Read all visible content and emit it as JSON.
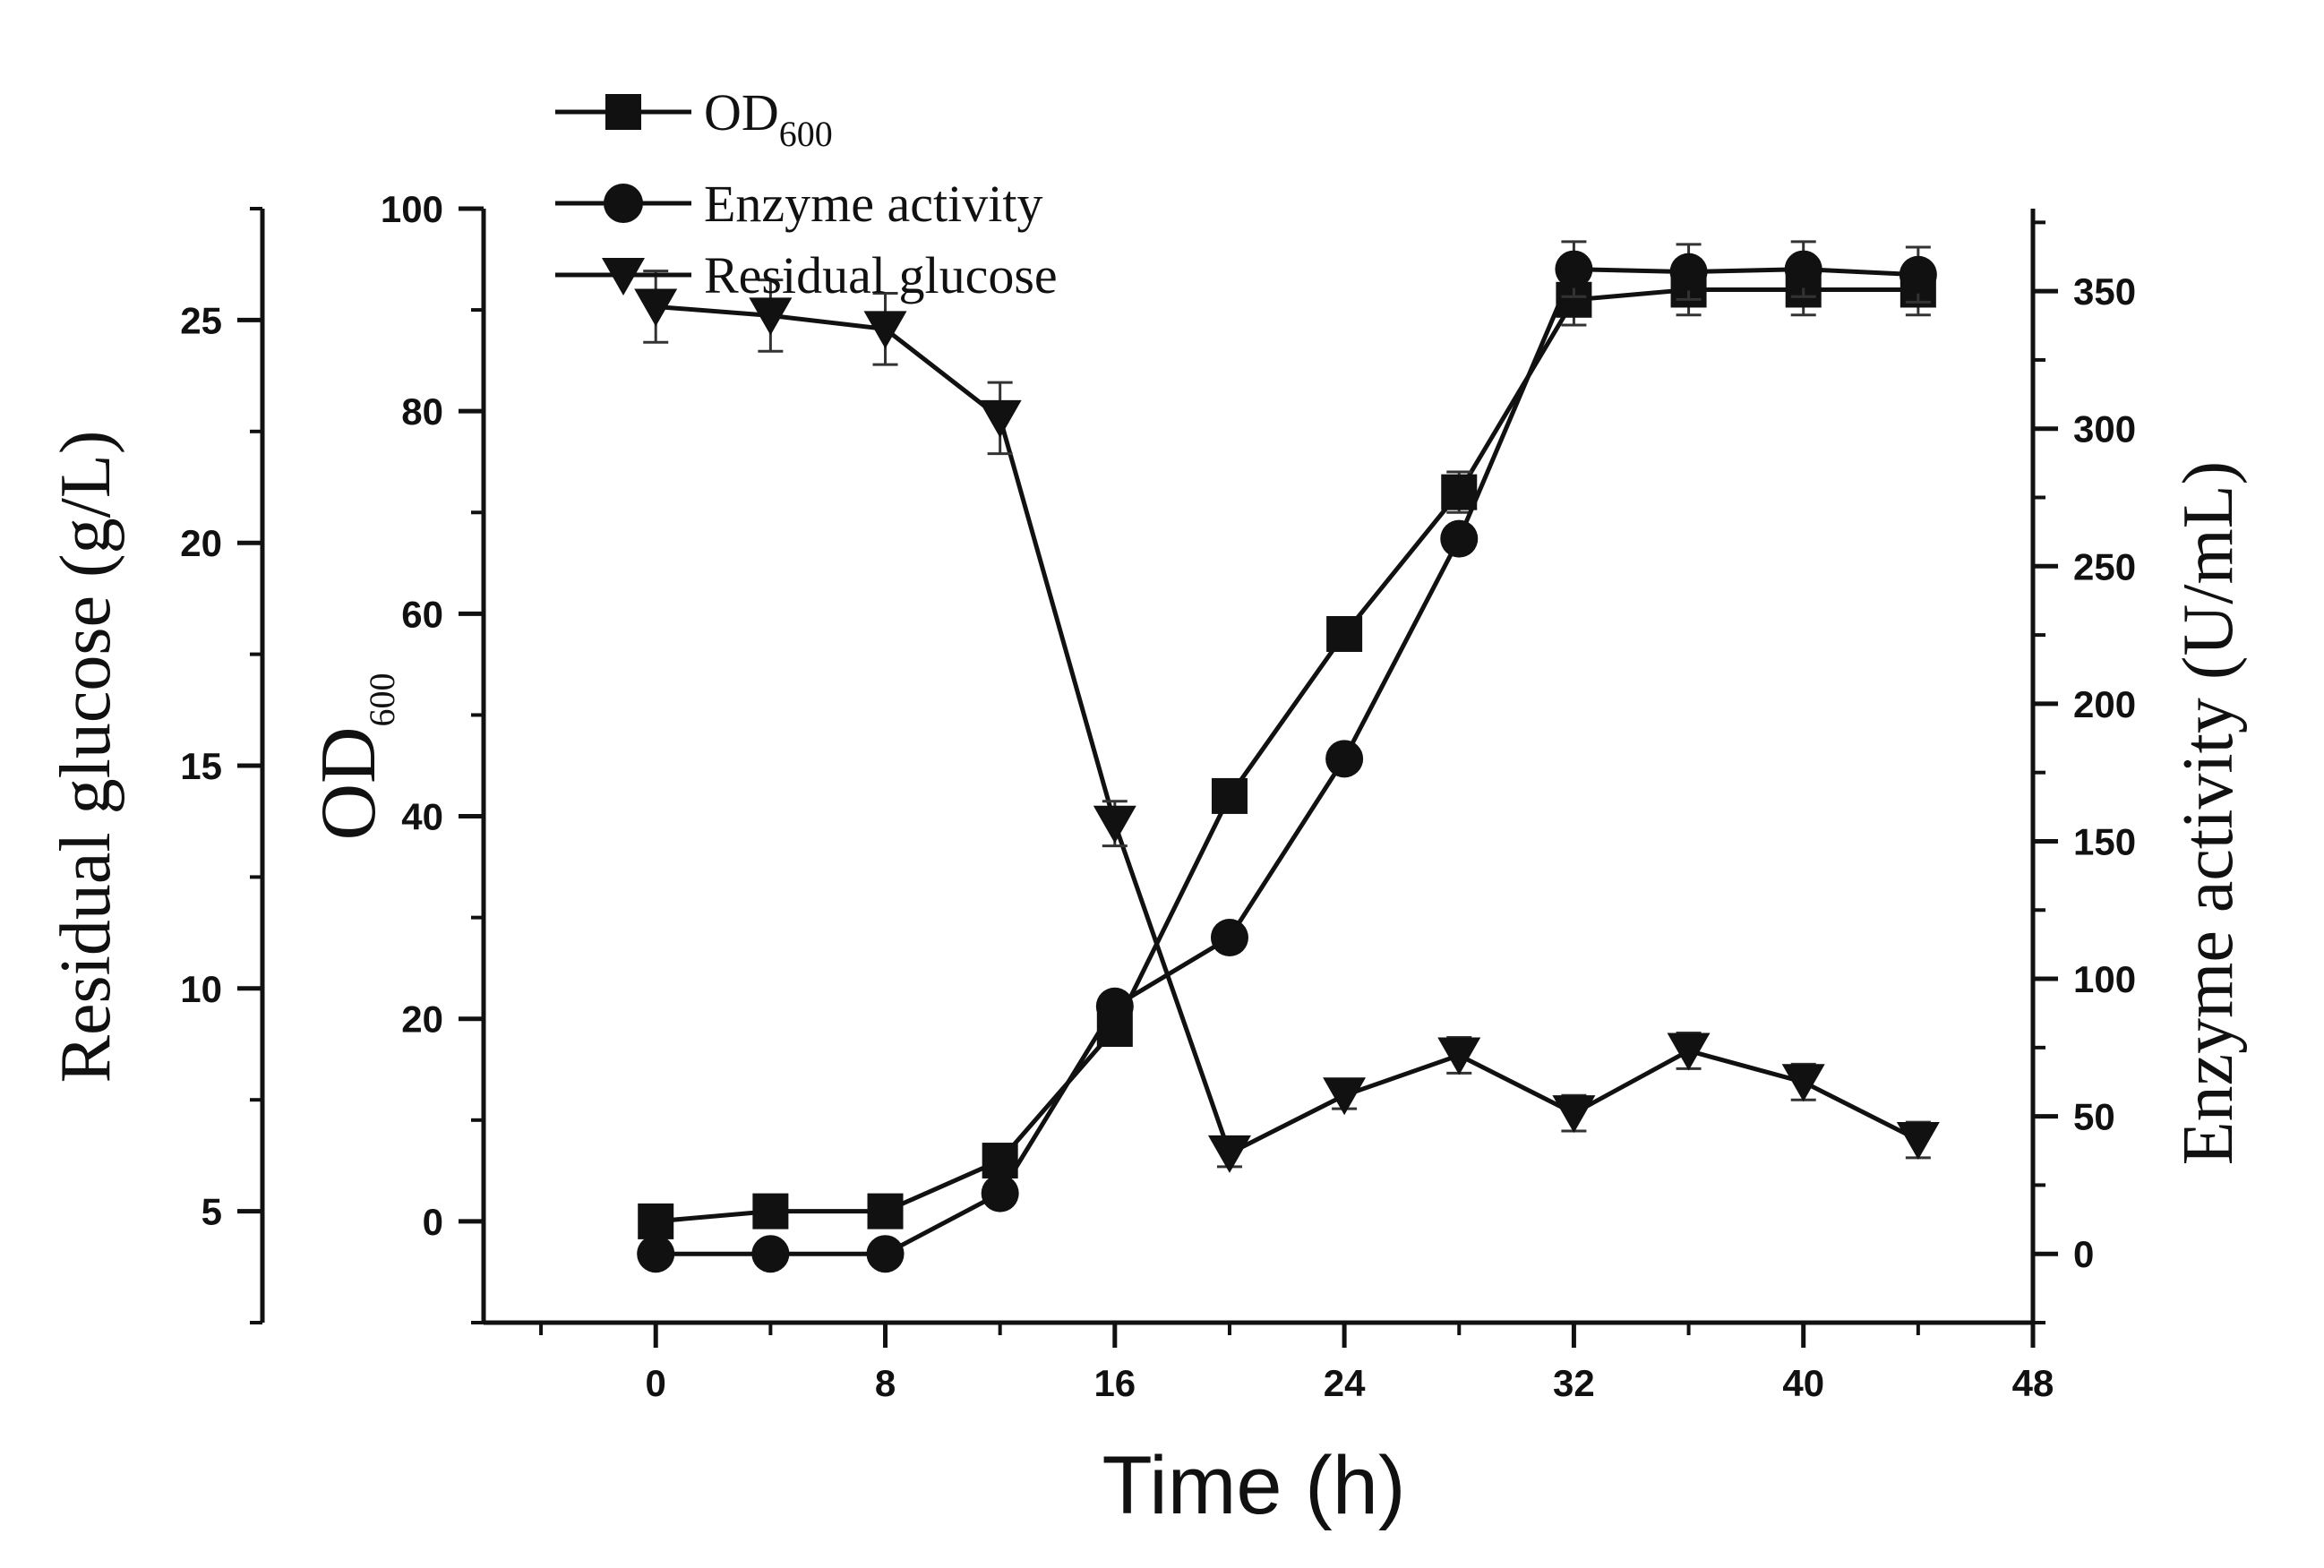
{
  "chart_data": {
    "type": "line",
    "x": [
      0,
      4,
      8,
      12,
      16,
      20,
      24,
      28,
      32,
      36,
      40,
      44
    ],
    "x_axis": {
      "label": "Time (h)",
      "lim": [
        -6,
        48
      ],
      "ticks": [
        0,
        8,
        16,
        24,
        32,
        40,
        48
      ],
      "tick_labels": [
        "0",
        "8",
        "16",
        "24",
        "32",
        "40",
        "48"
      ],
      "minor_step": 4
    },
    "axes": {
      "od": {
        "label_main": "OD",
        "label_sub": "600",
        "lim": [
          -10,
          100
        ],
        "ticks": [
          0,
          20,
          40,
          60,
          80,
          100
        ],
        "tick_labels": [
          "0",
          "20",
          "40",
          "60",
          "80",
          "100"
        ],
        "minor_step": 10
      },
      "glucose": {
        "label": "Residual glucose (g/L)",
        "lim": [
          2.5,
          27.5
        ],
        "ticks": [
          5,
          10,
          15,
          20,
          25
        ],
        "tick_labels": [
          "5",
          "10",
          "15",
          "20",
          "25"
        ],
        "minor_step": 2.5
      },
      "enzyme": {
        "label": "Enzyme activity (U/mL)",
        "lim": [
          -25,
          380
        ],
        "ticks": [
          0,
          50,
          100,
          150,
          200,
          250,
          300,
          350
        ],
        "tick_labels": [
          "0",
          "50",
          "100",
          "150",
          "200",
          "250",
          "300",
          "350"
        ],
        "minor_step": 25
      }
    },
    "series": [
      {
        "name": "OD600",
        "legend_main": "OD",
        "legend_sub": "600",
        "axis": "od",
        "marker": "square",
        "values": [
          0,
          1,
          1,
          6,
          19,
          42,
          58,
          72,
          91,
          92,
          92,
          92
        ],
        "errors": [
          0,
          0,
          0,
          1.5,
          0,
          0,
          0,
          2,
          2.5,
          2.5,
          2.5,
          2.5
        ]
      },
      {
        "name": "Enzyme activity",
        "axis": "enzyme",
        "marker": "circle",
        "values": [
          0,
          0,
          0,
          22,
          90,
          115,
          180,
          260,
          358,
          357,
          358,
          356
        ],
        "errors": [
          0,
          0,
          0,
          0,
          0,
          0,
          0,
          0,
          10,
          10,
          10,
          10
        ]
      },
      {
        "name": "Residual glucose",
        "axis": "glucose",
        "marker": "triangle-down",
        "values": [
          25.3,
          25.1,
          24.8,
          22.8,
          13.7,
          6.3,
          7.6,
          8.5,
          7.2,
          8.6,
          7.9,
          6.6
        ],
        "errors": [
          0.8,
          0.8,
          0.8,
          0.8,
          0.5,
          0.3,
          0.3,
          0.4,
          0.4,
          0.4,
          0.4,
          0.4
        ]
      }
    ],
    "title": "",
    "legend": "top-left",
    "grid": false
  }
}
